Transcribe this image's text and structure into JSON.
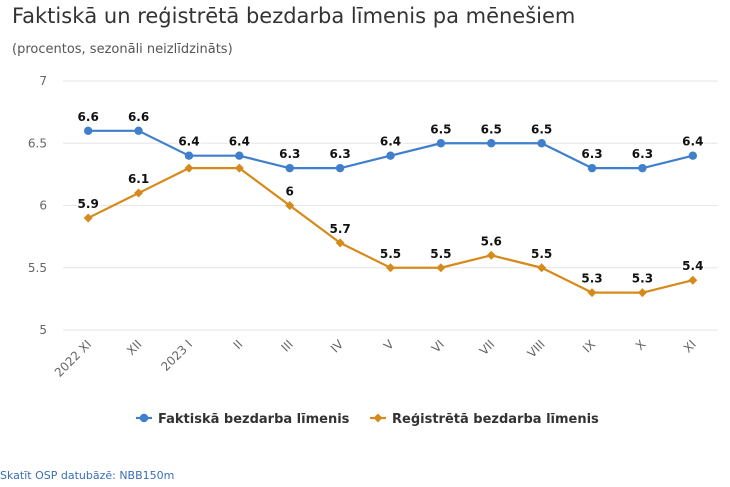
{
  "header": {
    "title": "Faktiskā un reģistrētā bezdarba līmenis pa mēnešiem",
    "subtitle": "(procentos, sezonāli neizlīdzināts)"
  },
  "source_link": "Skatīt OSP datubāzē: NBB150m",
  "chart_data": {
    "type": "line",
    "categories": [
      "2022 XI",
      "XII",
      "2023 I",
      "II",
      "III",
      "IV",
      "V",
      "VI",
      "VII",
      "VIII",
      "IX",
      "X",
      "XI"
    ],
    "series": [
      {
        "name": "Faktiskā bezdarba līmenis",
        "color": "#3f7fcb",
        "marker": "circle",
        "values": [
          6.6,
          6.6,
          6.4,
          6.4,
          6.3,
          6.3,
          6.4,
          6.5,
          6.5,
          6.5,
          6.3,
          6.3,
          6.4
        ],
        "labels": [
          "6.6",
          "6.6",
          "6.4",
          "6.4",
          "6.3",
          "6.3",
          "6.4",
          "6.5",
          "6.5",
          "6.5",
          "6.3",
          "6.3",
          "6.4"
        ]
      },
      {
        "name": "Reģistrētā bezdarba līmenis",
        "color": "#d68a1c",
        "marker": "diamond",
        "values": [
          5.9,
          6.1,
          6.3,
          6.3,
          6.0,
          5.7,
          5.5,
          5.5,
          5.6,
          5.5,
          5.3,
          5.3,
          5.4
        ],
        "labels": [
          "5.9",
          "6.1",
          "",
          "",
          "6",
          "5.7",
          "5.5",
          "5.5",
          "5.6",
          "5.5",
          "5.3",
          "5.3",
          "5.4"
        ]
      }
    ],
    "yticks": [
      "5",
      "5.5",
      "6",
      "6.5",
      "7"
    ],
    "ylim": [
      5,
      7
    ],
    "grid": true,
    "legend": "bottom-center"
  }
}
